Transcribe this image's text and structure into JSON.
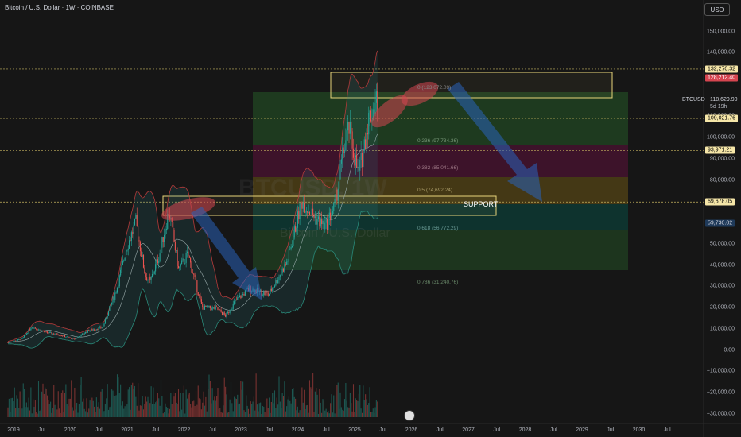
{
  "header": {
    "title": "Bitcoin / U.S. Dollar · 1W · COINBASE",
    "currency": "USD"
  },
  "watermark": {
    "ticker": "BTCUSD, 1W",
    "name": "Bitcoin / U.S. Dollar"
  },
  "y_axis": [
    {
      "label": "150,000.00",
      "value": 150000
    },
    {
      "label": "140,000.00",
      "value": 140000
    },
    {
      "label": "110,000.00",
      "value": 110000
    },
    {
      "label": "100,000.00",
      "value": 100000
    },
    {
      "label": "90,000.00",
      "value": 90000
    },
    {
      "label": "80,000.00",
      "value": 80000
    },
    {
      "label": "60,000.00",
      "value": 60000
    },
    {
      "label": "50,000.00",
      "value": 50000
    },
    {
      "label": "40,000.00",
      "value": 40000
    },
    {
      "label": "30,000.00",
      "value": 30000
    },
    {
      "label": "20,000.00",
      "value": 20000
    },
    {
      "label": "10,000.00",
      "value": 10000
    },
    {
      "label": "0.00",
      "value": 0
    },
    {
      "label": "−10,000.00",
      "value": -10000
    },
    {
      "label": "−20,000.00",
      "value": -20000
    },
    {
      "label": "−30,000.00",
      "value": -30000
    }
  ],
  "x_axis": [
    "2019",
    "Jul",
    "2020",
    "Jul",
    "2021",
    "Jul",
    "2022",
    "Jul",
    "2023",
    "Jul",
    "2024",
    "Jul",
    "2025",
    "Jul",
    "2026",
    "Jul",
    "2027",
    "Jul",
    "2028",
    "Jul",
    "2029",
    "Jul",
    "2030",
    "Jul"
  ],
  "price_labels": [
    {
      "label": "132,270.32",
      "value": 132270.32,
      "bg": "#f5e6a8",
      "color": "#000000"
    },
    {
      "label": "128,212.40",
      "value": 128212.4,
      "bg": "#d64550",
      "color": "#ffffff"
    },
    {
      "label": "109,021.76",
      "value": 109021.76,
      "bg": "#f5e6a8",
      "color": "#000000"
    },
    {
      "label": "93,971.21",
      "value": 93971.21,
      "bg": "#f5e6a8",
      "color": "#000000"
    },
    {
      "label": "69,678.05",
      "value": 69678.05,
      "bg": "#f5e6a8",
      "color": "#000000"
    },
    {
      "label": "59,730.02",
      "value": 59730.02,
      "bg": "#1f3a5a",
      "color": "#d1d4dc"
    }
  ],
  "current": {
    "symbol": "BTCUSD",
    "price": "118,629.90",
    "countdown": "5d 19h"
  },
  "annotations": {
    "support": "SUPPORT"
  },
  "fib_levels": [
    {
      "label": "0 (123,072.09)",
      "value": 123072.09
    },
    {
      "label": "0.236 (97,734.36)",
      "value": 97734.36
    },
    {
      "label": "0.382 (85,041.66)",
      "value": 85041.66
    },
    {
      "label": "0.5 (74,692.24)",
      "value": 74692.24
    },
    {
      "label": "0.618 (56,772.29)",
      "value": 56772.29
    },
    {
      "label": "0.786 (31,240.76)",
      "value": 31240.76
    }
  ],
  "colors": {
    "up": "#26a69a",
    "down": "#ef5350",
    "background": "#161616",
    "grid": "#232323"
  },
  "chart_data": {
    "type": "candlestick",
    "title": "Bitcoin / U.S. Dollar · 1W · COINBASE",
    "x_range": [
      "2019",
      "2030"
    ],
    "ylim": [
      -30000,
      150000
    ],
    "grid": false,
    "close_series": [
      {
        "date": "2019-01",
        "close": 3500
      },
      {
        "date": "2019-04",
        "close": 5200
      },
      {
        "date": "2019-06",
        "close": 11000
      },
      {
        "date": "2019-09",
        "close": 8300
      },
      {
        "date": "2019-12",
        "close": 7200
      },
      {
        "date": "2020-03",
        "close": 5000
      },
      {
        "date": "2020-06",
        "close": 9200
      },
      {
        "date": "2020-09",
        "close": 10700
      },
      {
        "date": "2020-12",
        "close": 29000
      },
      {
        "date": "2021-02",
        "close": 48000
      },
      {
        "date": "2021-04",
        "close": 60000
      },
      {
        "date": "2021-06",
        "close": 35000
      },
      {
        "date": "2021-07",
        "close": 32000
      },
      {
        "date": "2021-09",
        "close": 45000
      },
      {
        "date": "2021-11",
        "close": 66000
      },
      {
        "date": "2022-01",
        "close": 38000
      },
      {
        "date": "2022-03",
        "close": 45000
      },
      {
        "date": "2022-06",
        "close": 20000
      },
      {
        "date": "2022-09",
        "close": 19500
      },
      {
        "date": "2022-11",
        "close": 16000
      },
      {
        "date": "2023-01",
        "close": 23000
      },
      {
        "date": "2023-04",
        "close": 29000
      },
      {
        "date": "2023-08",
        "close": 26000
      },
      {
        "date": "2023-10",
        "close": 34000
      },
      {
        "date": "2023-12",
        "close": 42000
      },
      {
        "date": "2024-03",
        "close": 70000
      },
      {
        "date": "2024-06",
        "close": 62000
      },
      {
        "date": "2024-08",
        "close": 58000
      },
      {
        "date": "2024-10",
        "close": 68000
      },
      {
        "date": "2024-12",
        "close": 96000
      },
      {
        "date": "2025-01",
        "close": 104000
      },
      {
        "date": "2025-03",
        "close": 82000
      },
      {
        "date": "2025-04",
        "close": 94000
      },
      {
        "date": "2025-05",
        "close": 108000
      },
      {
        "date": "2025-07",
        "close": 118629.9
      }
    ]
  }
}
